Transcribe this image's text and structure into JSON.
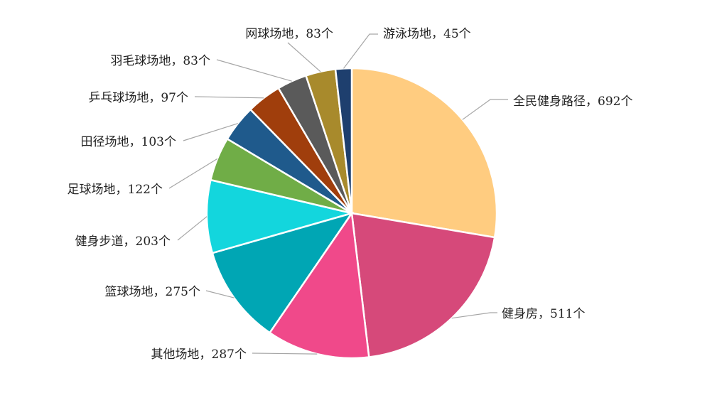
{
  "chart_data": {
    "type": "pie",
    "slices": [
      {
        "label": "全民健身路径，692个",
        "name": "全民健身路径",
        "value": 692,
        "color": "#FFCC80"
      },
      {
        "label": "健身房，511个",
        "name": "健身房",
        "value": 511,
        "color": "#D6497A"
      },
      {
        "label": "其他场地，287个",
        "name": "其他场地",
        "value": 287,
        "color": "#F0498A"
      },
      {
        "label": "篮球场地，275个",
        "name": "篮球场地",
        "value": 275,
        "color": "#00A6B4"
      },
      {
        "label": "健身步道，203个",
        "name": "健身步道",
        "value": 203,
        "color": "#13D6DD"
      },
      {
        "label": "足球场地，122个",
        "name": "足球场地",
        "value": 122,
        "color": "#70AD47"
      },
      {
        "label": "田径场地，103个",
        "name": "田径场地",
        "value": 103,
        "color": "#1F5A8C"
      },
      {
        "label": "乒乓球场地，97个",
        "name": "乒乓球场地",
        "value": 97,
        "color": "#A03E0C"
      },
      {
        "label": "羽毛球场地，83个",
        "name": "羽毛球场地",
        "value": 83,
        "color": "#5A5A5A"
      },
      {
        "label": "网球场地，83个",
        "name": "网球场地",
        "value": 83,
        "color": "#A88A2C"
      },
      {
        "label": "游泳场地，45个",
        "name": "游泳场地",
        "value": 45,
        "color": "#1E3F6E"
      }
    ],
    "start_angle_deg": 0,
    "direction": "clockwise",
    "legend": "none",
    "data_labels": "outside-with-leader-lines"
  }
}
